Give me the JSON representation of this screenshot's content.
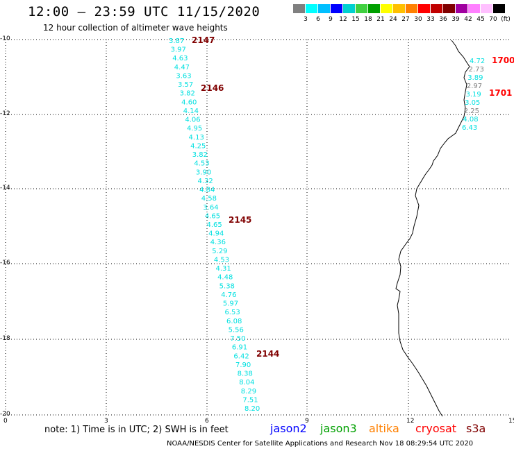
{
  "header": {
    "title": "12:00 – 23:59 UTC 11/15/2020",
    "subtitle": "12 hour collection of altimeter wave heights"
  },
  "legend": {
    "colors": [
      "#808080",
      "#00ffff",
      "#00bfff",
      "#0000ff",
      "#00d0d0",
      "#40d040",
      "#00a000",
      "#ffff00",
      "#ffc000",
      "#ff8000",
      "#ff0000",
      "#c00000",
      "#800000",
      "#a000a0",
      "#ff80ff",
      "#ffc0ff",
      "#000000"
    ],
    "labels": [
      "3",
      "6",
      "9",
      "12",
      "15",
      "18",
      "21",
      "24",
      "27",
      "30",
      "33",
      "36",
      "39",
      "42",
      "45",
      "70",
      "(ft)"
    ]
  },
  "map": {
    "x_ticks": [
      "0",
      "3",
      "6",
      "9",
      "12",
      "15"
    ],
    "y_ticks": [
      "-10",
      "-12",
      "-14",
      "-16",
      "-18",
      "-20"
    ],
    "coastline_color": "#000000",
    "grid": true
  },
  "tracks": [
    {
      "id": "track-2147-2144",
      "color": "#00e0e0",
      "values": [
        "3.87",
        "3.97",
        "4.63",
        "4.47",
        "3.63",
        "3.57",
        "3.82",
        "4.60",
        "4.14",
        "4.06",
        "4.95",
        "4.13",
        "4.25",
        "3.82",
        "4.53",
        "3.90",
        "4.32",
        "4.84",
        "4.58",
        "3.64",
        "4.65",
        "4.65",
        "4.94",
        "4.36",
        "5.29",
        "4.53",
        "4.31",
        "4.48",
        "5.38",
        "4.76",
        "5.97",
        "6.53",
        "6.08",
        "5.56",
        "7.50",
        "6.91",
        "6.42",
        "7.90",
        "8.38",
        "8.04",
        "8.29",
        "7.51",
        "8.20"
      ],
      "pass_labels": [
        {
          "text": "2147",
          "color": "#800000"
        },
        {
          "text": "2146",
          "color": "#800000"
        },
        {
          "text": "2145",
          "color": "#800000"
        },
        {
          "text": "2144",
          "color": "#800000"
        }
      ]
    },
    {
      "id": "track-1700-1701",
      "values": [
        {
          "v": "4.72",
          "color": "#00e0e0"
        },
        {
          "v": "2.73",
          "color": "#808080"
        },
        {
          "v": "3.89",
          "color": "#00e0e0"
        },
        {
          "v": "2.97",
          "color": "#808080"
        },
        {
          "v": "3.19",
          "color": "#00e0e0"
        },
        {
          "v": "3.05",
          "color": "#00e0e0"
        },
        {
          "v": "2.25",
          "color": "#808080"
        },
        {
          "v": "4.08",
          "color": "#00e0e0"
        },
        {
          "v": "6.43",
          "color": "#00e0e0"
        }
      ],
      "pass_labels": [
        {
          "text": "1700",
          "color": "#ff0000"
        },
        {
          "text": "1701",
          "color": "#ff0000"
        }
      ]
    }
  ],
  "footer": {
    "note": "note: 1) Time is in UTC; 2) SWH is in feet",
    "satellites": [
      {
        "name": "jason2",
        "color": "#0000ff"
      },
      {
        "name": "jason3",
        "color": "#00a000"
      },
      {
        "name": "altika",
        "color": "#ff8000"
      },
      {
        "name": "cryosat",
        "color": "#ff0000"
      },
      {
        "name": "s3a",
        "color": "#800000"
      }
    ],
    "credit": "NOAA/NESDIS Center for Satellite Applications and Research    Nov 18 08:29:54 UTC 2020"
  }
}
